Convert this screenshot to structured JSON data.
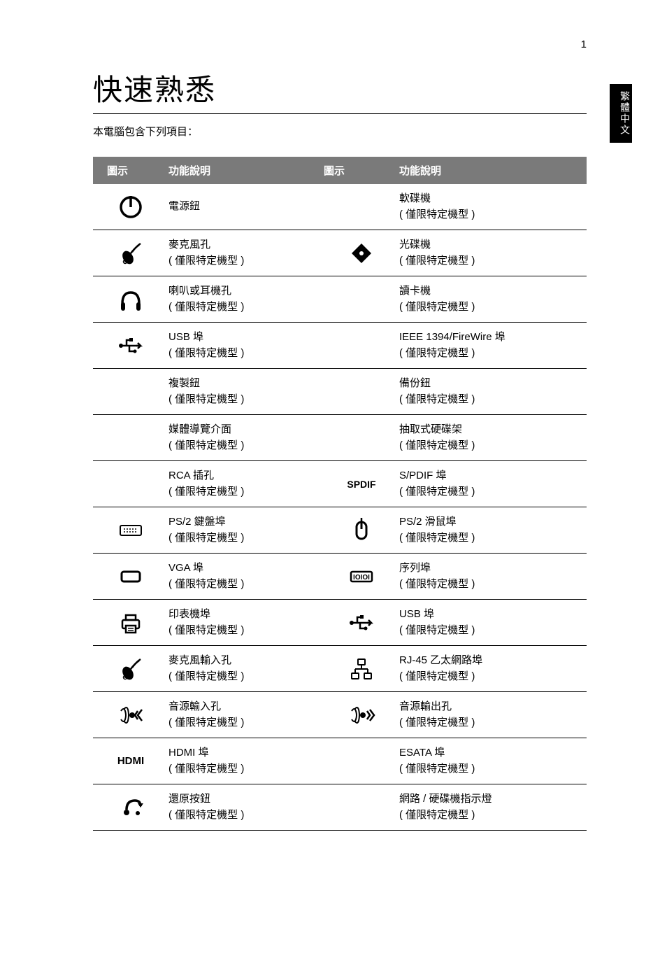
{
  "page_number": "1",
  "lang_tab": "繁體中文",
  "title": "快速熟悉",
  "subtitle": "本電腦包含下列項目：",
  "table": {
    "header": {
      "icon": "圖示",
      "desc": "功能說明"
    },
    "rows": [
      {
        "icon1": "power",
        "d1a": "電源鈕",
        "d1b": "",
        "icon2": "",
        "d2a": "軟碟機",
        "d2b": "( 僅限特定機型 )"
      },
      {
        "icon1": "mic",
        "d1a": "麥克風孔",
        "d1b": "( 僅限特定機型 )",
        "icon2": "disc",
        "d2a": "光碟機",
        "d2b": "( 僅限特定機型 )"
      },
      {
        "icon1": "headphone",
        "d1a": "喇叭或耳機孔",
        "d1b": "( 僅限特定機型 )",
        "icon2": "",
        "d2a": "讀卡機",
        "d2b": "( 僅限特定機型 )"
      },
      {
        "icon1": "usb",
        "d1a": "USB 埠",
        "d1b": "( 僅限特定機型 )",
        "icon2": "",
        "d2a": "IEEE 1394/FireWire 埠",
        "d2b": "( 僅限特定機型 )"
      },
      {
        "icon1": "",
        "d1a": "複製鈕",
        "d1b": "( 僅限特定機型 )",
        "icon2": "",
        "d2a": "備份鈕",
        "d2b": "( 僅限特定機型 )"
      },
      {
        "icon1": "",
        "d1a": "媒體導覽介面",
        "d1b": "( 僅限特定機型 )",
        "icon2": "",
        "d2a": "抽取式硬碟架",
        "d2b": "( 僅限特定機型 )"
      },
      {
        "icon1": "",
        "d1a": "RCA 插孔",
        "d1b": "( 僅限特定機型 )",
        "icon2": "spdif-text",
        "d2a": "S/PDIF 埠",
        "d2b": "( 僅限特定機型 )"
      },
      {
        "icon1": "keyboard",
        "d1a": "PS/2 鍵盤埠",
        "d1b": "( 僅限特定機型 )",
        "icon2": "mouse",
        "d2a": "PS/2 滑鼠埠",
        "d2b": "( 僅限特定機型 )"
      },
      {
        "icon1": "vga",
        "d1a": "VGA 埠",
        "d1b": "( 僅限特定機型 )",
        "icon2": "serial",
        "d2a": "序列埠",
        "d2b": "( 僅限特定機型 )"
      },
      {
        "icon1": "printer",
        "d1a": "印表機埠",
        "d1b": "( 僅限特定機型 )",
        "icon2": "usb",
        "d2a": "USB 埠",
        "d2b": "( 僅限特定機型 )"
      },
      {
        "icon1": "mic",
        "d1a": "麥克風輸入孔",
        "d1b": "( 僅限特定機型 )",
        "icon2": "ethernet",
        "d2a": "RJ-45 乙太網路埠",
        "d2b": "( 僅限特定機型 )"
      },
      {
        "icon1": "audio-in",
        "d1a": "音源輸入孔",
        "d1b": "( 僅限特定機型 )",
        "icon2": "audio-out",
        "d2a": "音源輸出孔",
        "d2b": "( 僅限特定機型 )"
      },
      {
        "icon1": "hdmi-text",
        "d1a": "HDMI 埠",
        "d1b": "( 僅限特定機型 )",
        "icon2": "",
        "d2a": "ESATA 埠",
        "d2b": "( 僅限特定機型 )"
      },
      {
        "icon1": "restore",
        "d1a": "還原按鈕",
        "d1b": "( 僅限特定機型 )",
        "icon2": "",
        "d2a": "網路 / 硬碟機指示燈",
        "d2b": "( 僅限特定機型 )"
      }
    ]
  },
  "icon_texts": {
    "hdmi": "HDMI",
    "spdif": "SPDIF"
  },
  "colors": {
    "header_bg": "#7a7a7a",
    "header_fg": "#ffffff",
    "border": "#000000",
    "text": "#000000"
  }
}
